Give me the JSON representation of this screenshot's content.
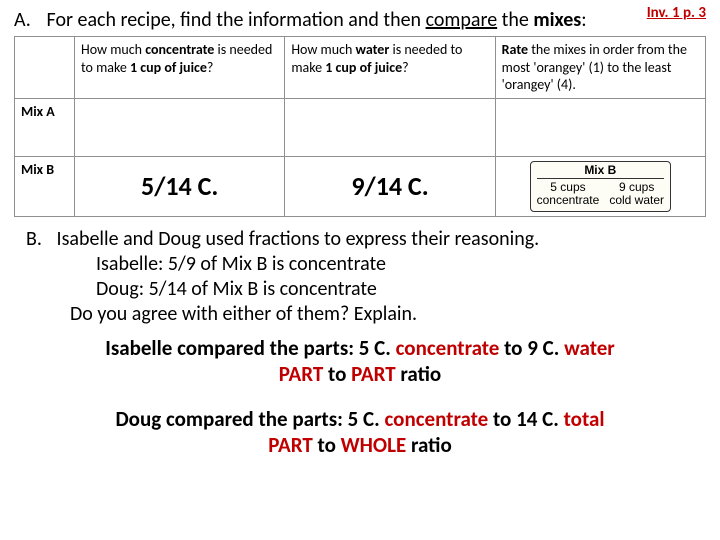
{
  "pageRef": {
    "text": "Inv. 1 p. 3",
    "color": "#c00000"
  },
  "sectionA": {
    "letter": "A.",
    "promptPlain": "For each recipe, find the information and then ",
    "promptCompare": "compare",
    "promptThe": " the ",
    "promptMixes": "mixes",
    "promptColon": ":",
    "headers": {
      "col1_a": "How much ",
      "col1_b": "concentrate",
      "col1_c": " is needed to make ",
      "col1_d": "1 cup of juice",
      "col1_e": "?",
      "col2_a": "How much ",
      "col2_b": "water",
      "col2_c": " is needed to make ",
      "col2_d": "1 cup of juice",
      "col2_e": "?",
      "col3_a": "Rate",
      "col3_b": " the mixes in order from the most 'orangey' (1) to the least 'orangey' (4)."
    },
    "rows": {
      "a": {
        "label": "Mix A",
        "c1": "",
        "c2": "",
        "c3": ""
      },
      "b": {
        "label": "Mix B",
        "c1": "5/14 C.",
        "c2": "9/14 C.",
        "card": {
          "title": "Mix B",
          "left_top": "5 cups",
          "left_bot": "concentrate",
          "right_top": "9 cups",
          "right_bot": "cold water"
        }
      }
    }
  },
  "sectionB": {
    "letter": "B.",
    "line1": "Isabelle and Doug used fractions to express their reasoning.",
    "line2": "Isabelle: 5/9 of Mix B is concentrate",
    "line3": "Doug: 5/14 of Mix B is concentrate",
    "line4": "Do you agree with either of them?  Explain."
  },
  "explain1": {
    "p1_blk": "Isabelle compared the parts: 5 C. ",
    "p1_r1": "concentrate",
    "p1_mid": " to 9 C. ",
    "p1_r2": "water",
    "p2_r1": "PART",
    "p2_mid1": " to ",
    "p2_r2": "PART",
    "p2_mid2": " ratio"
  },
  "explain2": {
    "p1_blk": "Doug compared the parts: 5 C. ",
    "p1_r1": "concentrate",
    "p1_mid": " to 14 C. ",
    "p1_r2": "total",
    "p2_r1": "PART",
    "p2_mid1": " to ",
    "p2_r2": "WHOLE",
    "p2_mid2": " ratio"
  },
  "colors": {
    "red": "#c00000"
  }
}
